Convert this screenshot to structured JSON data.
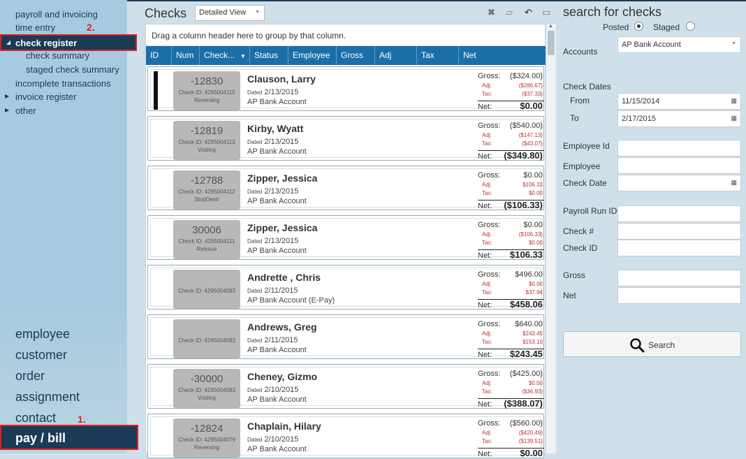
{
  "sidebar": {
    "items": [
      {
        "label": "payroll and invoicing"
      },
      {
        "label": "time entry"
      },
      {
        "label": "check register"
      },
      {
        "label": "check summary"
      },
      {
        "label": "staged check summary"
      },
      {
        "label": "incomplete transactions"
      },
      {
        "label": "invoice register"
      },
      {
        "label": "other"
      }
    ],
    "annotation_2": "2.",
    "annotation_1": "1.",
    "main_nav": [
      {
        "label": "employee"
      },
      {
        "label": "customer"
      },
      {
        "label": "order"
      },
      {
        "label": "assignment"
      },
      {
        "label": "contact"
      },
      {
        "label": "pay / bill"
      }
    ]
  },
  "main": {
    "title": "Checks",
    "view_select": "Detailed View",
    "group_hint": "Drag a column header here to group by that column.",
    "columns": [
      "ID",
      "Num",
      "Check...",
      "Status",
      "Employee",
      "Gross",
      "Adj",
      "Tax",
      "Net"
    ],
    "labels": {
      "gross": "Gross:",
      "adj": "Adj:",
      "tax": "Tax:",
      "net": "Net:"
    },
    "checks": [
      {
        "num": "-12830",
        "check_id": "Check ID: 4295004115",
        "status": "Reversing",
        "name": "Clauson, Larry",
        "dated_label": "Dated",
        "date": "2/13/2015",
        "bank": "AP Bank Account",
        "gross": "($324.00)",
        "adj": "($286.67)",
        "tax": "($37.33)",
        "net": "$0.00"
      },
      {
        "num": "-12819",
        "check_id": "Check ID: 4295004113",
        "status": "Voiding",
        "name": "Kirby, Wyatt",
        "dated_label": "Dated",
        "date": "2/13/2015",
        "bank": "AP Bank Account",
        "gross": "($540.00)",
        "adj": "($147.13)",
        "tax": "($43.07)",
        "net": "($349.80)"
      },
      {
        "num": "-12788",
        "check_id": "Check ID: 4295004112",
        "status": "StopDestr",
        "name": "Zipper, Jessica",
        "dated_label": "Dated",
        "date": "2/13/2015",
        "bank": "AP Bank Account",
        "gross": "$0.00",
        "adj": "$106.33",
        "tax": "$0.00",
        "net": "($106.33)"
      },
      {
        "num": "30006",
        "check_id": "Check ID: 4295004111",
        "status": "Reissue",
        "name": "Zipper, Jessica",
        "dated_label": "Dated",
        "date": "2/13/2015",
        "bank": "AP Bank Account",
        "gross": "$0.00",
        "adj": "($106.33)",
        "tax": "$0.00",
        "net": "$106.33"
      },
      {
        "num": "",
        "check_id": "Check ID: 4295004093",
        "status": "",
        "name": "Andrette , Chris",
        "dated_label": "Dated",
        "date": "2/11/2015",
        "bank": "AP Bank Account (E-Pay)",
        "gross": "$496.00",
        "adj": "$0.00",
        "tax": "$37.94",
        "net": "$458.06"
      },
      {
        "num": "",
        "check_id": "Check ID: 4295004092",
        "status": "",
        "name": "Andrews, Greg",
        "dated_label": "Dated",
        "date": "2/11/2015",
        "bank": "AP Bank Account",
        "gross": "$640.00",
        "adj": "$243.45",
        "tax": "$153.10",
        "net": "$243.45"
      },
      {
        "num": "-30000",
        "check_id": "Check ID: 4295004083",
        "status": "Voiding",
        "name": "Cheney, Gizmo",
        "dated_label": "Dated",
        "date": "2/10/2015",
        "bank": "AP Bank Account",
        "gross": "($425.00)",
        "adj": "$0.00",
        "tax": "($36.93)",
        "net": "($388.07)"
      },
      {
        "num": "-12824",
        "check_id": "Check ID: 4295004079",
        "status": "Reversing",
        "name": "Chaplain, Hilary",
        "dated_label": "Dated",
        "date": "2/10/2015",
        "bank": "AP Bank Account",
        "gross": "($560.00)",
        "adj": "($420.49)",
        "tax": "($139.51)",
        "net": "$0.00"
      }
    ]
  },
  "search": {
    "title": "search for checks",
    "posted_label": "Posted",
    "staged_label": "Staged",
    "posted_selected": true,
    "accounts_label": "Accounts",
    "accounts_value": "AP Bank Account",
    "check_dates_label": "Check Dates",
    "from_label": "From",
    "from_value": "11/15/2014",
    "to_label": "To",
    "to_value": "2/17/2015",
    "employee_id_label": "Employee Id",
    "employee_label": "Employee",
    "check_date_label": "Check Date",
    "payroll_run_id_label": "Payroll Run ID",
    "check_num_label": "Check #",
    "check_id_label": "Check ID",
    "gross_label": "Gross",
    "net_label": "Net",
    "button_label": "Search"
  },
  "icons": [
    "close-icon",
    "eraser-icon",
    "undo-icon",
    "export-icon",
    "calendar-icon",
    "search-icon",
    "chevron-down-icon",
    "expand-triangle-icon"
  ],
  "colors": {
    "nav_dark": "#1b3a55",
    "header_blue": "#1a6fa8",
    "highlight_red": "#e02020",
    "sidebar": "#a6cbe0",
    "panel": "#cfe0ea"
  }
}
